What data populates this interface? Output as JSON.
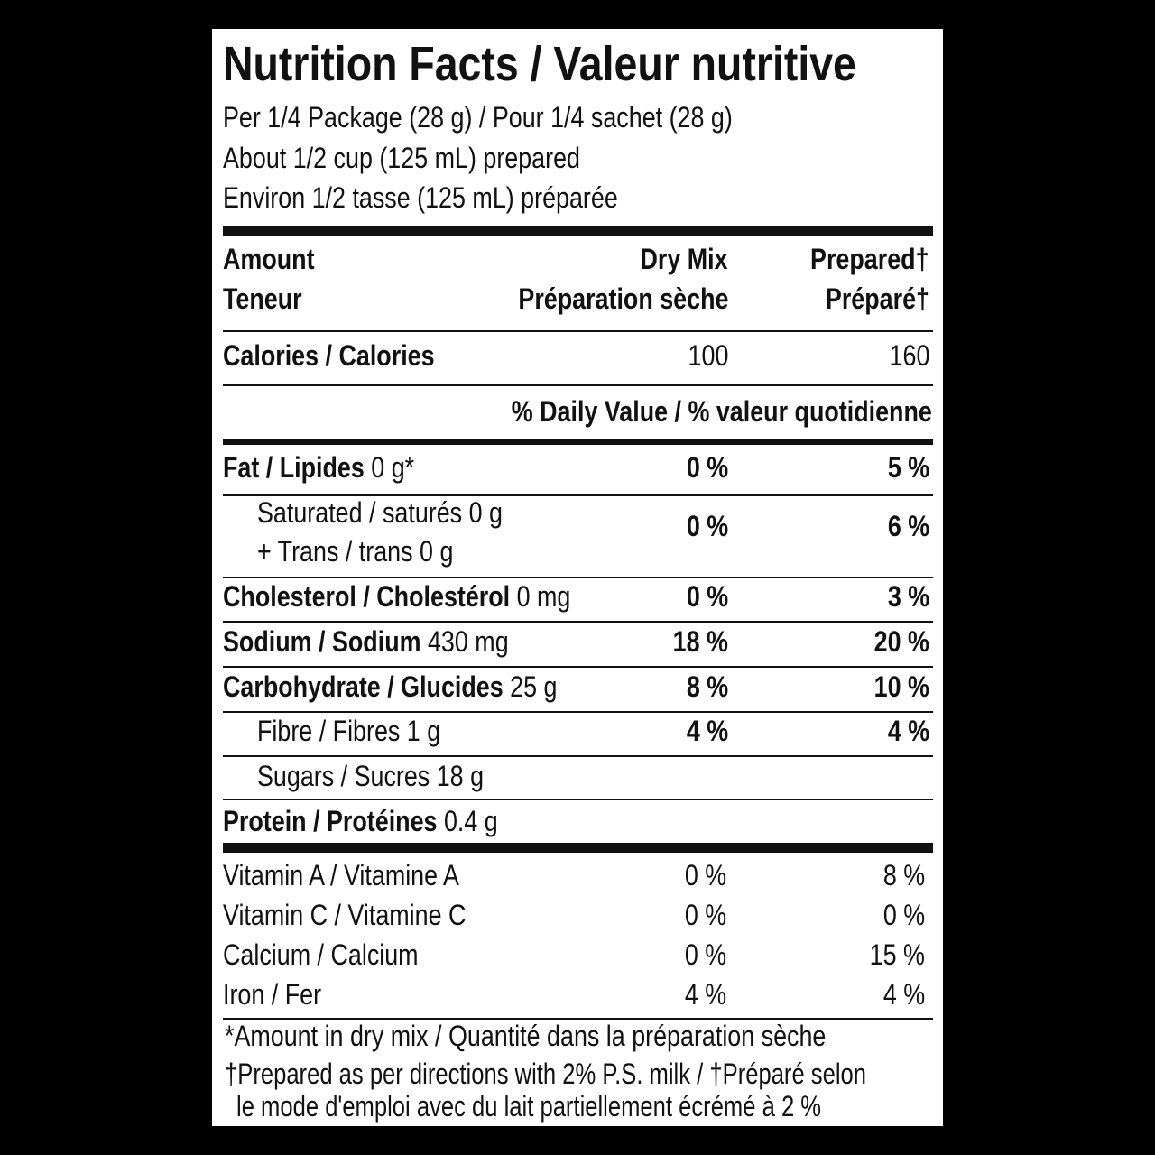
{
  "header": {
    "title": "Nutrition Facts / Valeur nutritive",
    "serving": [
      "Per 1/4 Package (28 g) / Pour 1/4 sachet (28 g)",
      "About 1/2 cup (125 mL) prepared",
      "Environ 1/2 tasse (125 mL) préparée"
    ]
  },
  "columns": {
    "amount": [
      "Amount",
      "Teneur"
    ],
    "dry": [
      "Dry Mix",
      "Préparation sèche"
    ],
    "prepared": [
      "Prepared†",
      "Préparé†"
    ]
  },
  "calories": {
    "label": "Calories / Calories",
    "dry": "100",
    "prepared": "160"
  },
  "dv_heading": "% Daily Value / % valeur quotidienne",
  "nutrients": [
    {
      "label": "Fat / Lipides",
      "amount": "0 g*",
      "dry": "0 %",
      "prepared": "5 %"
    },
    {
      "lines": [
        "Saturated / saturés 0 g",
        "+ Trans / trans 0 g"
      ],
      "dry": "0 %",
      "prepared": "6 %"
    },
    {
      "label": "Cholesterol / Cholestérol",
      "amount": "0 mg",
      "dry": "0 %",
      "prepared": "3 %"
    },
    {
      "label": "Sodium / Sodium",
      "amount": "430 mg",
      "dry": "18 %",
      "prepared": "20 %"
    },
    {
      "label": "Carbohydrate / Glucides",
      "amount": "25 g",
      "dry": "8 %",
      "prepared": "10 %"
    },
    {
      "lines": [
        "Fibre / Fibres 1 g"
      ],
      "dry": "4 %",
      "prepared": "4 %"
    },
    {
      "lines": [
        "Sugars / Sucres 18 g"
      ]
    },
    {
      "label": "Protein / Protéines",
      "amount": "0.4 g"
    }
  ],
  "vitamins": [
    {
      "label": "Vitamin A / Vitamine A",
      "dry": "0 %",
      "prepared": "8 %"
    },
    {
      "label": "Vitamin C / Vitamine C",
      "dry": "0 %",
      "prepared": "0 %"
    },
    {
      "label": "Calcium / Calcium",
      "dry": "0 %",
      "prepared": "15 %"
    },
    {
      "label": "Iron / Fer",
      "dry": "4 %",
      "prepared": "4 %"
    }
  ],
  "footnotes": [
    "*Amount in dry mix / Quantité dans la préparation sèche",
    "†Prepared as per directions with 2% P.S. milk / †Préparé selon",
    "le mode d'emploi avec du lait partiellement écrémé à 2 %"
  ]
}
